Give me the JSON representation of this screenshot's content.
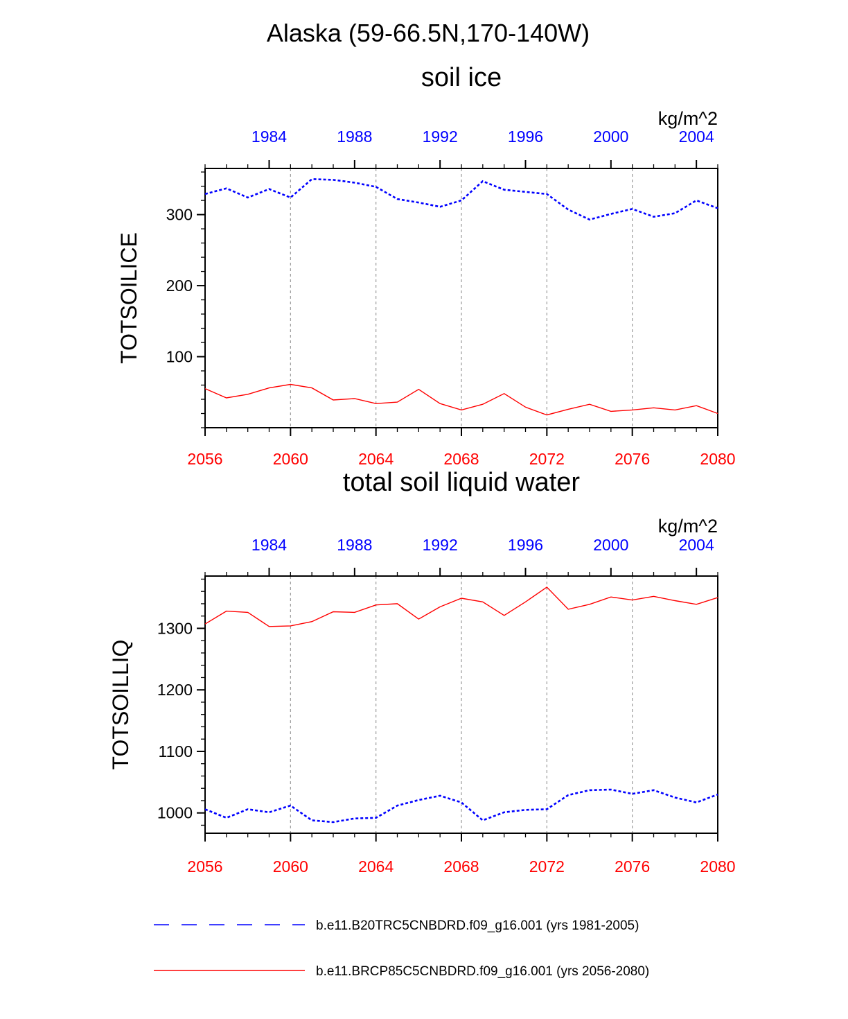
{
  "figure": {
    "title": "Alaska (59-66.5N,170-140W)"
  },
  "colors": {
    "historical": "#0000ff",
    "future": "#ff0000",
    "axis": "#000000",
    "grid": "#999999"
  },
  "legend": {
    "placement": "bottom",
    "items": [
      {
        "label": "b.e11.B20TRC5CNBDRD.f09_g16.001 (yrs 1981-2005)",
        "style": "dashed",
        "color": "#0000ff"
      },
      {
        "label": "b.e11.BRCP85C5CNBDRD.f09_g16.001 (yrs 2056-2080)",
        "style": "solid",
        "color": "#ff0000"
      }
    ]
  },
  "chart_data": [
    {
      "type": "line",
      "title": "soil ice",
      "units": "kg/m^2",
      "ylabel": "TOTSOILICE",
      "ylim": [
        0,
        365
      ],
      "yticks": [
        100,
        200,
        300
      ],
      "ytick_labels": [
        "100",
        "200",
        "300"
      ],
      "bottom_axis": {
        "range": [
          2056,
          2080
        ],
        "ticks": [
          2056,
          2060,
          2064,
          2068,
          2072,
          2076,
          2080
        ],
        "tick_labels": [
          "2056",
          "2060",
          "2064",
          "2068",
          "2072",
          "2076",
          "2080"
        ]
      },
      "top_axis": {
        "range": [
          1981,
          2005
        ],
        "ticks": [
          1984,
          1988,
          1992,
          1996,
          2000,
          2004
        ],
        "tick_labels": [
          "1984",
          "1988",
          "1992",
          "1996",
          "2000",
          "2004"
        ]
      },
      "grid_x": [
        2060,
        2064,
        2068,
        2072,
        2076
      ],
      "series": [
        {
          "axis": "top",
          "style": "dashed",
          "color": "#0000ff",
          "x": [
            1981,
            1982,
            1983,
            1984,
            1985,
            1986,
            1987,
            1988,
            1989,
            1990,
            1991,
            1992,
            1993,
            1994,
            1995,
            1996,
            1997,
            1998,
            1999,
            2000,
            2001,
            2002,
            2003,
            2004,
            2005
          ],
          "values": [
            329,
            337,
            324,
            336,
            324,
            350,
            349,
            345,
            339,
            322,
            317,
            311,
            320,
            347,
            335,
            332,
            329,
            307,
            293,
            301,
            308,
            297,
            302,
            320,
            309
          ]
        },
        {
          "axis": "bottom",
          "style": "solid",
          "color": "#ff0000",
          "x": [
            2056,
            2057,
            2058,
            2059,
            2060,
            2061,
            2062,
            2063,
            2064,
            2065,
            2066,
            2067,
            2068,
            2069,
            2070,
            2071,
            2072,
            2073,
            2074,
            2075,
            2076,
            2077,
            2078,
            2079,
            2080
          ],
          "values": [
            55,
            42,
            47,
            56,
            61,
            56,
            39,
            41,
            34,
            36,
            54,
            34,
            25,
            33,
            48,
            29,
            18,
            26,
            33,
            23,
            25,
            28,
            25,
            31,
            20
          ]
        }
      ]
    },
    {
      "type": "line",
      "title": "total soil liquid water",
      "units": "kg/m^2",
      "ylabel": "TOTSOILLIQ",
      "ylim": [
        967,
        1385
      ],
      "yticks": [
        1000,
        1100,
        1200,
        1300
      ],
      "ytick_labels": [
        "1000",
        "1100",
        "1200",
        "1300"
      ],
      "bottom_axis": {
        "range": [
          2056,
          2080
        ],
        "ticks": [
          2056,
          2060,
          2064,
          2068,
          2072,
          2076,
          2080
        ],
        "tick_labels": [
          "2056",
          "2060",
          "2064",
          "2068",
          "2072",
          "2076",
          "2080"
        ]
      },
      "top_axis": {
        "range": [
          1981,
          2005
        ],
        "ticks": [
          1984,
          1988,
          1992,
          1996,
          2000,
          2004
        ],
        "tick_labels": [
          "1984",
          "1988",
          "1992",
          "1996",
          "2000",
          "2004"
        ]
      },
      "grid_x": [
        2060,
        2064,
        2068,
        2072,
        2076
      ],
      "series": [
        {
          "axis": "top",
          "style": "dashed",
          "color": "#0000ff",
          "x": [
            1981,
            1982,
            1983,
            1984,
            1985,
            1986,
            1987,
            1988,
            1989,
            1990,
            1991,
            1992,
            1993,
            1994,
            1995,
            1996,
            1997,
            1998,
            1999,
            2000,
            2001,
            2002,
            2003,
            2004,
            2005
          ],
          "values": [
            1006,
            992,
            1006,
            1001,
            1012,
            988,
            985,
            991,
            992,
            1012,
            1021,
            1028,
            1017,
            988,
            1001,
            1005,
            1006,
            1029,
            1037,
            1038,
            1031,
            1037,
            1025,
            1017,
            1030
          ]
        },
        {
          "axis": "bottom",
          "style": "solid",
          "color": "#ff0000",
          "x": [
            2056,
            2057,
            2058,
            2059,
            2060,
            2061,
            2062,
            2063,
            2064,
            2065,
            2066,
            2067,
            2068,
            2069,
            2070,
            2071,
            2072,
            2073,
            2074,
            2075,
            2076,
            2077,
            2078,
            2079,
            2080
          ],
          "values": [
            1307,
            1328,
            1326,
            1303,
            1304,
            1311,
            1327,
            1326,
            1338,
            1340,
            1315,
            1335,
            1349,
            1343,
            1321,
            1343,
            1367,
            1331,
            1339,
            1351,
            1346,
            1352,
            1345,
            1339,
            1350
          ]
        }
      ]
    }
  ]
}
